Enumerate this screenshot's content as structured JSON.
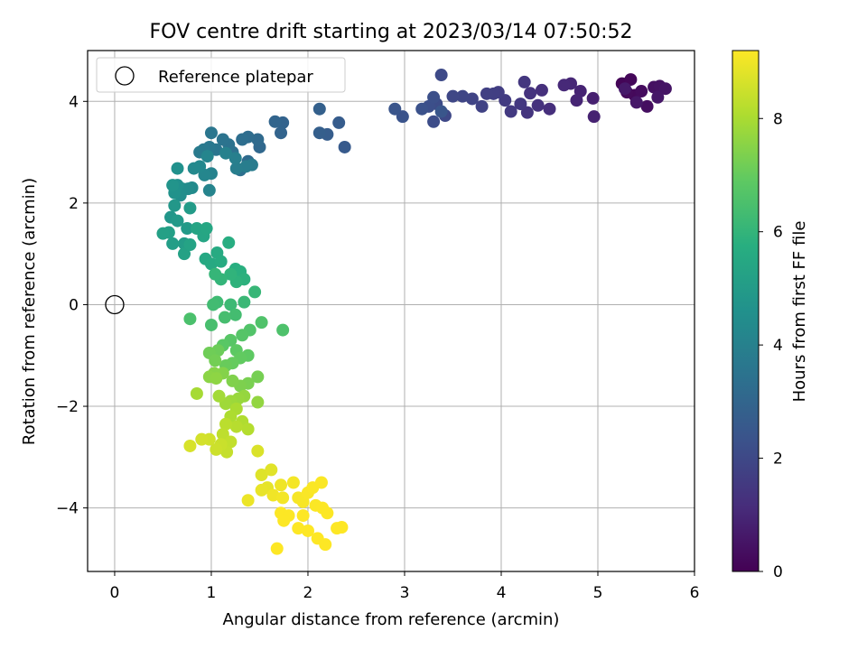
{
  "chart_data": {
    "type": "scatter",
    "title": "FOV centre drift starting at 2023/03/14 07:50:52",
    "xlabel": "Angular distance from reference (arcmin)",
    "ylabel": "Rotation from reference (arcmin)",
    "xlim": [
      -0.28,
      6.0
    ],
    "ylim": [
      -5.25,
      5.0
    ],
    "xticks": [
      0,
      1,
      2,
      3,
      4,
      5,
      6
    ],
    "yticks": [
      -4,
      -2,
      0,
      2,
      4
    ],
    "xtick_labels": [
      "0",
      "1",
      "2",
      "3",
      "4",
      "5",
      "6"
    ],
    "ytick_labels": [
      "−4",
      "−2",
      "0",
      "2",
      "4"
    ],
    "grid": true,
    "legend": {
      "location": "upper-left",
      "entries": [
        "Reference platepar"
      ]
    },
    "reference_point": {
      "x": 0,
      "y": 0,
      "label": "Reference platepar"
    },
    "colorbar": {
      "label": "Hours from first FF file",
      "colormap": "viridis",
      "range": [
        0,
        9.2
      ],
      "ticks": [
        0,
        2,
        4,
        6,
        8
      ],
      "tick_labels": [
        "0",
        "2",
        "4",
        "6",
        "8"
      ]
    },
    "series": [
      {
        "points": [
          [
            5.25,
            4.35,
            0.1
          ],
          [
            5.34,
            4.43,
            0.15
          ],
          [
            5.38,
            4.12,
            0.2
          ],
          [
            5.3,
            4.18,
            0.25
          ],
          [
            5.45,
            4.2,
            0.3
          ],
          [
            5.51,
            3.9,
            0.35
          ],
          [
            5.58,
            4.28,
            0.4
          ],
          [
            5.64,
            4.3,
            0.45
          ],
          [
            5.7,
            4.25,
            0.5
          ],
          [
            5.62,
            4.08,
            0.55
          ],
          [
            5.4,
            3.98,
            0.6
          ],
          [
            5.28,
            4.25,
            0.65
          ],
          [
            4.95,
            4.06,
            0.8
          ],
          [
            4.96,
            3.7,
            0.85
          ],
          [
            4.82,
            4.2,
            0.9
          ],
          [
            4.78,
            4.02,
            0.95
          ],
          [
            4.72,
            4.35,
            1.0
          ],
          [
            4.65,
            4.32,
            1.05
          ],
          [
            4.5,
            3.85,
            1.2
          ],
          [
            4.42,
            4.22,
            1.25
          ],
          [
            4.38,
            3.92,
            1.3
          ],
          [
            4.3,
            4.16,
            1.35
          ],
          [
            4.27,
            3.78,
            1.4
          ],
          [
            4.24,
            4.38,
            1.45
          ],
          [
            4.2,
            3.95,
            1.5
          ],
          [
            4.1,
            3.8,
            1.55
          ],
          [
            4.04,
            4.02,
            1.6
          ],
          [
            3.97,
            4.18,
            1.65
          ],
          [
            3.92,
            4.15,
            1.7
          ],
          [
            3.85,
            4.15,
            1.75
          ],
          [
            3.8,
            3.9,
            1.8
          ],
          [
            3.7,
            4.05,
            1.85
          ],
          [
            3.6,
            4.1,
            1.9
          ],
          [
            3.5,
            4.1,
            1.95
          ],
          [
            3.42,
            3.72,
            2.0
          ],
          [
            3.38,
            4.52,
            2.05
          ],
          [
            3.33,
            3.95,
            2.1
          ],
          [
            3.3,
            3.6,
            2.15
          ],
          [
            3.25,
            3.9,
            2.2
          ],
          [
            3.3,
            4.08,
            2.25
          ],
          [
            3.18,
            3.85,
            2.3
          ],
          [
            2.98,
            3.7,
            2.35
          ],
          [
            2.9,
            3.85,
            2.4
          ],
          [
            3.38,
            3.8,
            2.45
          ],
          [
            2.38,
            3.1,
            2.6
          ],
          [
            2.32,
            3.58,
            2.65
          ],
          [
            2.2,
            3.35,
            2.7
          ],
          [
            2.12,
            3.38,
            2.75
          ],
          [
            2.12,
            3.85,
            2.8
          ],
          [
            1.74,
            3.58,
            2.9
          ],
          [
            1.72,
            3.38,
            2.95
          ],
          [
            1.66,
            3.6,
            3.0
          ],
          [
            1.5,
            3.1,
            3.1
          ],
          [
            1.48,
            3.25,
            3.15
          ],
          [
            1.38,
            2.82,
            3.2
          ],
          [
            1.38,
            3.3,
            3.25
          ],
          [
            1.32,
            3.25,
            3.3
          ],
          [
            1.3,
            2.65,
            3.35
          ],
          [
            1.22,
            3.0,
            3.4
          ],
          [
            1.18,
            3.15,
            3.45
          ],
          [
            1.12,
            3.25,
            3.5
          ],
          [
            1.05,
            3.05,
            3.55
          ],
          [
            1.0,
            3.38,
            3.6
          ],
          [
            0.98,
            3.1,
            3.65
          ],
          [
            0.92,
            3.05,
            3.7
          ],
          [
            0.88,
            3.0,
            3.75
          ],
          [
            1.42,
            2.75,
            3.8
          ],
          [
            1.36,
            2.72,
            3.85
          ],
          [
            1.26,
            2.68,
            3.9
          ],
          [
            1.25,
            2.88,
            3.95
          ],
          [
            1.15,
            2.98,
            4.0
          ],
          [
            1.0,
            2.58,
            4.05
          ],
          [
            0.98,
            2.25,
            4.1
          ],
          [
            0.96,
            2.92,
            4.15
          ],
          [
            0.93,
            2.55,
            4.2
          ],
          [
            0.88,
            2.72,
            4.25
          ],
          [
            0.82,
            2.68,
            4.3
          ],
          [
            0.8,
            2.3,
            4.35
          ],
          [
            0.76,
            2.28,
            4.4
          ],
          [
            0.7,
            2.28,
            4.45
          ],
          [
            0.68,
            2.15,
            4.5
          ],
          [
            0.65,
            2.35,
            4.55
          ],
          [
            0.65,
            2.68,
            4.6
          ],
          [
            0.62,
            2.2,
            4.65
          ],
          [
            0.6,
            2.35,
            4.7
          ],
          [
            0.58,
            1.72,
            4.8
          ],
          [
            0.62,
            1.95,
            4.85
          ],
          [
            0.65,
            1.65,
            4.9
          ],
          [
            0.75,
            1.5,
            4.95
          ],
          [
            0.78,
            1.9,
            5.0
          ],
          [
            0.72,
            1.2,
            5.05
          ],
          [
            0.6,
            1.2,
            5.1
          ],
          [
            0.56,
            1.42,
            5.15
          ],
          [
            0.5,
            1.4,
            5.2
          ],
          [
            0.72,
            1.0,
            5.25
          ],
          [
            0.78,
            1.18,
            5.3
          ],
          [
            0.85,
            1.5,
            5.35
          ],
          [
            0.92,
            1.35,
            5.4
          ],
          [
            0.95,
            1.5,
            5.45
          ],
          [
            0.94,
            0.9,
            5.5
          ],
          [
            1.0,
            0.8,
            5.55
          ],
          [
            1.06,
            1.02,
            5.6
          ],
          [
            1.1,
            0.85,
            5.65
          ],
          [
            1.18,
            1.22,
            5.7
          ],
          [
            1.25,
            0.7,
            5.75
          ],
          [
            1.3,
            0.65,
            5.8
          ],
          [
            1.34,
            0.5,
            5.85
          ],
          [
            1.26,
            0.45,
            5.9
          ],
          [
            1.2,
            0.6,
            5.95
          ],
          [
            1.1,
            0.5,
            6.0
          ],
          [
            1.04,
            0.6,
            6.05
          ],
          [
            1.45,
            0.25,
            6.1
          ],
          [
            1.34,
            0.05,
            6.15
          ],
          [
            1.2,
            0.0,
            6.2
          ],
          [
            1.06,
            0.05,
            6.25
          ],
          [
            1.02,
            0.0,
            6.3
          ],
          [
            1.25,
            -0.2,
            6.35
          ],
          [
            1.14,
            -0.25,
            6.4
          ],
          [
            1.0,
            -0.4,
            6.45
          ],
          [
            0.78,
            -0.28,
            6.5
          ],
          [
            1.74,
            -0.5,
            6.55
          ],
          [
            1.52,
            -0.35,
            6.6
          ],
          [
            1.4,
            -0.5,
            6.65
          ],
          [
            1.32,
            -0.6,
            6.7
          ],
          [
            1.2,
            -0.7,
            6.75
          ],
          [
            1.12,
            -0.8,
            6.8
          ],
          [
            1.26,
            -0.9,
            6.85
          ],
          [
            1.38,
            -1.0,
            6.9
          ],
          [
            1.3,
            -1.05,
            6.95
          ],
          [
            1.22,
            -1.15,
            7.0
          ],
          [
            1.15,
            -1.2,
            7.05
          ],
          [
            1.07,
            -0.9,
            7.1
          ],
          [
            0.98,
            -0.95,
            7.15
          ],
          [
            1.04,
            -1.1,
            7.2
          ],
          [
            1.48,
            -1.42,
            7.25
          ],
          [
            1.38,
            -1.55,
            7.3
          ],
          [
            1.3,
            -1.6,
            7.35
          ],
          [
            1.22,
            -1.5,
            7.4
          ],
          [
            1.12,
            -1.35,
            7.45
          ],
          [
            1.03,
            -1.35,
            7.5
          ],
          [
            0.98,
            -1.42,
            7.55
          ],
          [
            1.05,
            -1.45,
            7.6
          ],
          [
            1.48,
            -1.92,
            7.65
          ],
          [
            1.34,
            -1.8,
            7.7
          ],
          [
            1.28,
            -1.85,
            7.75
          ],
          [
            1.2,
            -1.9,
            7.8
          ],
          [
            1.15,
            -1.95,
            7.85
          ],
          [
            1.08,
            -1.8,
            7.9
          ],
          [
            0.85,
            -1.75,
            7.95
          ],
          [
            1.26,
            -2.05,
            8.0
          ],
          [
            1.2,
            -2.2,
            8.05
          ],
          [
            1.32,
            -2.3,
            8.1
          ],
          [
            1.38,
            -2.45,
            8.15
          ],
          [
            1.26,
            -2.4,
            8.2
          ],
          [
            1.15,
            -2.35,
            8.25
          ],
          [
            1.12,
            -2.55,
            8.3
          ],
          [
            1.2,
            -2.7,
            8.35
          ],
          [
            1.16,
            -2.9,
            8.4
          ],
          [
            1.1,
            -2.75,
            8.45
          ],
          [
            1.05,
            -2.85,
            8.5
          ],
          [
            0.98,
            -2.65,
            8.55
          ],
          [
            0.9,
            -2.65,
            8.6
          ],
          [
            0.78,
            -2.78,
            8.65
          ],
          [
            1.48,
            -2.88,
            8.7
          ],
          [
            1.52,
            -3.35,
            8.75
          ],
          [
            1.62,
            -3.25,
            8.8
          ],
          [
            1.58,
            -3.6,
            8.85
          ],
          [
            1.52,
            -3.65,
            8.9
          ],
          [
            1.38,
            -3.85,
            8.95
          ],
          [
            1.72,
            -3.55,
            9.0
          ],
          [
            1.64,
            -3.75,
            9.02
          ],
          [
            1.74,
            -3.8,
            9.05
          ],
          [
            1.85,
            -3.5,
            9.07
          ],
          [
            1.9,
            -3.8,
            9.1
          ],
          [
            1.95,
            -3.88,
            9.12
          ],
          [
            2.0,
            -3.7,
            9.14
          ],
          [
            2.05,
            -3.6,
            9.15
          ],
          [
            2.14,
            -3.5,
            9.16
          ],
          [
            2.08,
            -3.95,
            9.17
          ],
          [
            2.15,
            -4.0,
            9.18
          ],
          [
            2.2,
            -4.1,
            9.18
          ],
          [
            1.72,
            -4.1,
            9.19
          ],
          [
            1.8,
            -4.15,
            9.19
          ],
          [
            1.75,
            -4.25,
            9.19
          ],
          [
            1.95,
            -4.15,
            9.2
          ],
          [
            1.9,
            -4.4,
            9.2
          ],
          [
            2.0,
            -4.45,
            9.2
          ],
          [
            2.1,
            -4.6,
            9.2
          ],
          [
            2.18,
            -4.72,
            9.2
          ],
          [
            1.68,
            -4.8,
            9.2
          ],
          [
            2.3,
            -4.4,
            9.2
          ],
          [
            2.35,
            -4.38,
            9.2
          ]
        ]
      }
    ]
  }
}
